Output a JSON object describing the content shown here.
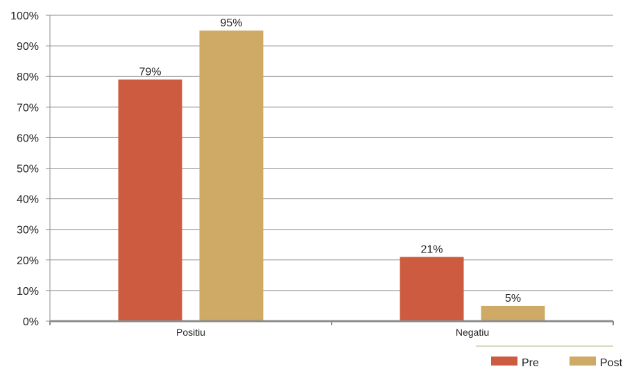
{
  "chart_data": {
    "type": "bar",
    "categories": [
      "Positiu",
      "Negatiu"
    ],
    "series": [
      {
        "name": "Pre",
        "values": [
          79,
          21
        ],
        "labels": [
          "79%",
          "21%"
        ],
        "color": "#cc5b3f"
      },
      {
        "name": "Post",
        "values": [
          95,
          5
        ],
        "labels": [
          "95%",
          "5%"
        ],
        "color": "#cfa966"
      }
    ],
    "ylim": [
      0,
      100
    ],
    "yticks": [
      0,
      10,
      20,
      30,
      40,
      50,
      60,
      70,
      80,
      90,
      100
    ],
    "ytick_labels": [
      "0%",
      "10%",
      "20%",
      "30%",
      "40%",
      "50%",
      "60%",
      "70%",
      "80%",
      "90%",
      "100%"
    ],
    "grid": true,
    "legend_position": "bottom-right",
    "colors": {
      "grid": "#8c8c8c",
      "axis": "#8c8c8c",
      "legend_rule": "#b5b07a"
    }
  }
}
